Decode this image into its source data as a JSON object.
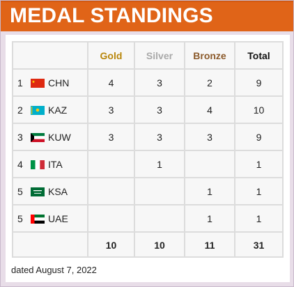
{
  "header": {
    "title": "MEDAL STANDINGS"
  },
  "columns": {
    "gold": "Gold",
    "silver": "Silver",
    "bronze": "Bronze",
    "total": "Total"
  },
  "rows": [
    {
      "rank": "1",
      "code": "CHN",
      "flag": "china-flag-icon",
      "gold": "4",
      "silver": "3",
      "bronze": "2",
      "total": "9"
    },
    {
      "rank": "2",
      "code": "KAZ",
      "flag": "kazakhstan-flag-icon",
      "gold": "3",
      "silver": "3",
      "bronze": "4",
      "total": "10"
    },
    {
      "rank": "3",
      "code": "KUW",
      "flag": "kuwait-flag-icon",
      "gold": "3",
      "silver": "3",
      "bronze": "3",
      "total": "9"
    },
    {
      "rank": "4",
      "code": "ITA",
      "flag": "italy-flag-icon",
      "gold": "",
      "silver": "1",
      "bronze": "",
      "total": "1"
    },
    {
      "rank": "5",
      "code": "KSA",
      "flag": "saudi-arabia-flag-icon",
      "gold": "",
      "silver": "",
      "bronze": "1",
      "total": "1"
    },
    {
      "rank": "5",
      "code": "UAE",
      "flag": "uae-flag-icon",
      "gold": "",
      "silver": "",
      "bronze": "1",
      "total": "1"
    }
  ],
  "totals": {
    "gold": "10",
    "silver": "10",
    "bronze": "11",
    "total": "31"
  },
  "footer": {
    "dated": "dated August 7, 2022"
  },
  "colors": {
    "header_bg": "#e06418",
    "gold": "#b8860b",
    "silver": "#a9a9a9",
    "bronze": "#8b5a2b"
  }
}
